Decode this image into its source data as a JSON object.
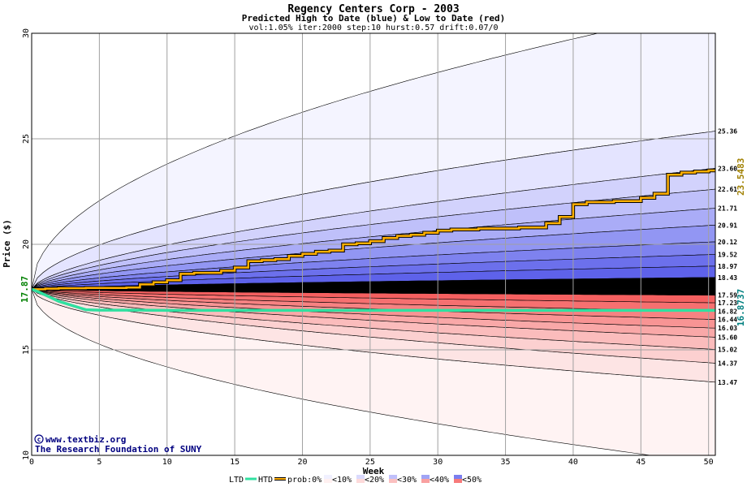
{
  "chart_data": {
    "type": "area",
    "title": "Regency Centers Corp - 2003",
    "subtitle": "Predicted High to Date (blue) &  Low to Date (red)",
    "params": "vol:1.05% iter:2000 step:10 hurst:0.57 drift:0.07/0",
    "xlabel": "Week",
    "ylabel": "Price ($)",
    "xlim": [
      0,
      50.5
    ],
    "ylim": [
      10,
      30
    ],
    "x_ticks": [
      0,
      5,
      10,
      15,
      20,
      25,
      30,
      35,
      40,
      45,
      50
    ],
    "y_ticks": [
      10,
      15,
      20,
      25,
      30
    ],
    "grid": true,
    "start_price": 17.87,
    "start_label": "17.87",
    "htd_end_label": "23.5483",
    "ltd_end_label": "16.8737",
    "right_labels": [
      "25.36",
      "23.60",
      "22.61",
      "21.71",
      "20.91",
      "20.12",
      "19.52",
      "18.97",
      "18.43",
      "17.59",
      "17.23",
      "16.82",
      "16.44",
      "16.03",
      "15.60",
      "15.02",
      "14.37",
      "13.47"
    ],
    "high_bands_end": [
      31.2,
      25.36,
      23.6,
      22.61,
      21.71,
      20.91,
      20.12,
      19.52,
      18.97,
      18.43
    ],
    "low_bands_end": [
      9.6,
      13.47,
      14.37,
      15.02,
      15.6,
      16.03,
      16.44,
      16.82,
      17.23,
      17.59
    ],
    "htd_series": {
      "x": [
        0,
        1,
        2,
        3,
        4,
        5,
        6,
        7,
        8,
        9,
        10,
        11,
        12,
        13,
        14,
        15,
        16,
        17,
        18,
        19,
        20,
        21,
        22,
        23,
        24,
        25,
        26,
        27,
        28,
        29,
        30,
        31,
        32,
        33,
        34,
        35,
        36,
        37,
        38,
        39,
        40,
        41,
        42,
        43,
        44,
        45,
        46,
        47,
        48,
        49,
        50,
        50.5
      ],
      "y": [
        17.87,
        17.9,
        17.92,
        17.92,
        17.93,
        17.93,
        17.93,
        17.95,
        18.1,
        18.2,
        18.3,
        18.6,
        18.65,
        18.65,
        18.75,
        18.9,
        19.2,
        19.25,
        19.3,
        19.45,
        19.55,
        19.65,
        19.7,
        20.0,
        20.05,
        20.15,
        20.3,
        20.4,
        20.45,
        20.55,
        20.65,
        20.7,
        20.7,
        20.75,
        20.75,
        20.75,
        20.8,
        20.8,
        21.0,
        21.3,
        21.9,
        22.0,
        22.0,
        22.05,
        22.05,
        22.2,
        22.4,
        23.3,
        23.4,
        23.45,
        23.5,
        23.55
      ]
    },
    "ltd_series": {
      "x": [
        0,
        0.5,
        1,
        1.5,
        2,
        2.5,
        3,
        3.5,
        4,
        5,
        6,
        8,
        10,
        12,
        15,
        20,
        25,
        30,
        35,
        40,
        45,
        50,
        50.5
      ],
      "y": [
        17.87,
        17.75,
        17.6,
        17.45,
        17.3,
        17.2,
        17.1,
        17.0,
        16.9,
        16.88,
        16.88,
        16.88,
        16.87,
        16.87,
        16.87,
        16.87,
        16.87,
        16.87,
        16.87,
        16.87,
        16.87,
        16.87,
        16.87
      ]
    },
    "credit_line1": "www.textbiz.org",
    "credit_line2": "The Research Foundation of SUNY",
    "legend": {
      "ltd": "LTD",
      "htd": "HTD",
      "prob": "prob:0%",
      "items": [
        "<10%",
        "<20%",
        "<30%",
        "<40%",
        "<50%"
      ]
    },
    "colors": {
      "htd_line": "#ffb000",
      "htd_outline": "#000000",
      "ltd_line": "#30e0a0",
      "start_label": "#008000",
      "htd_label": "#a08000",
      "ltd_label": "#008080",
      "grid": "#a0a0a0",
      "blue_bands": [
        "#f4f4ff",
        "#e4e4ff",
        "#d2d2fc",
        "#bfc0fa",
        "#aaacf7",
        "#9296f3",
        "#7e82ef",
        "#6c70ec",
        "#5e62ea"
      ],
      "red_bands": [
        "#fff3f3",
        "#fde4e4",
        "#fcd0d0",
        "#fbbcbc",
        "#f9a8a8",
        "#f89494",
        "#f78282",
        "#f67070",
        "#f56060"
      ]
    }
  }
}
